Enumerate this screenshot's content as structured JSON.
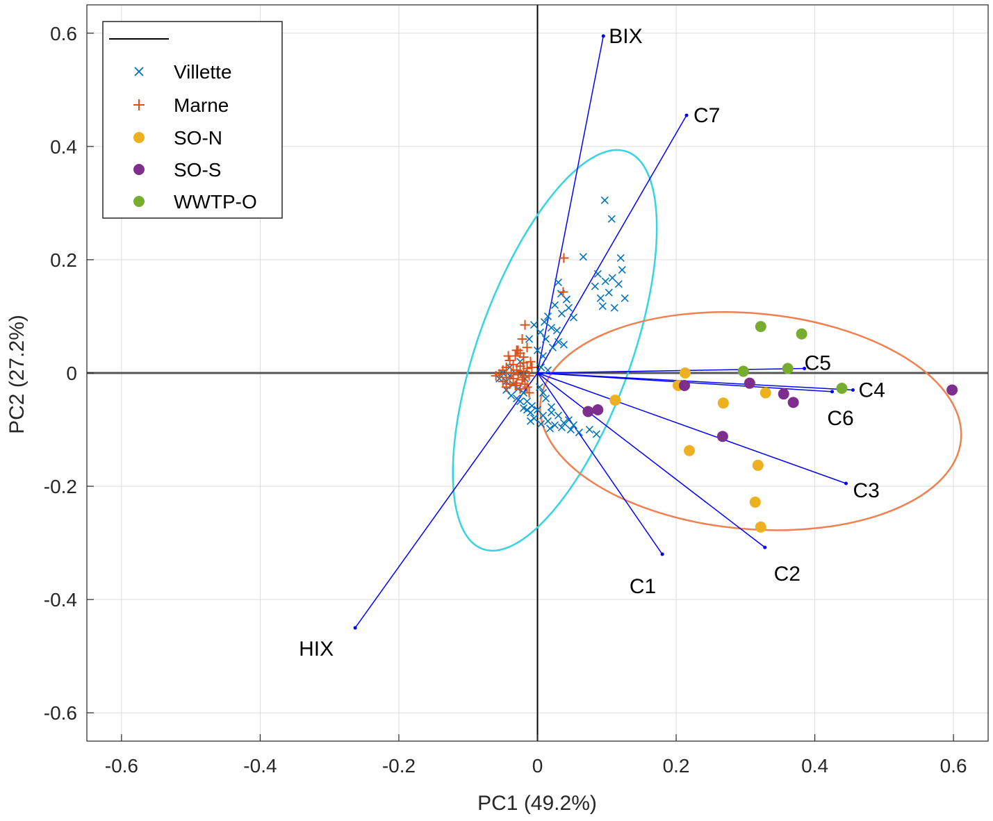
{
  "chart_data": {
    "type": "scatter",
    "title": "",
    "xlabel": "PC1 (49.2%)",
    "ylabel": "PC2 (27.2%)",
    "xlim": [
      -0.65,
      0.65
    ],
    "ylim": [
      -0.65,
      0.65
    ],
    "grid": true,
    "legend_position": "top-left",
    "xticks": [
      "-0.6",
      "-0.4",
      "-0.2",
      "0",
      "0.2",
      "0.4",
      "0.6"
    ],
    "yticks": [
      "0.6",
      "0.4",
      "0.2",
      "0",
      "-0.2",
      "-0.4",
      "-0.6"
    ],
    "xtick_values": [
      -0.6,
      -0.4,
      -0.2,
      0,
      0.2,
      0.4,
      0.6
    ],
    "ytick_values": [
      0.6,
      0.4,
      0.2,
      0,
      -0.2,
      -0.4,
      -0.6
    ],
    "colors": {
      "Villette": "#0072BD",
      "Marne": "#D95319",
      "SO-N": "#EDB120",
      "SO-S": "#7E2F8E",
      "WWTP-O": "#77AC30",
      "loadings": "#0000FF",
      "ellipse_villette": "#33D6E0",
      "ellipse_wwtp": "#F08050"
    },
    "legend": [
      {
        "name": "",
        "marker": "line"
      },
      {
        "name": "Villette",
        "marker": "x"
      },
      {
        "name": "Marne",
        "marker": "+"
      },
      {
        "name": "SO-N",
        "marker": "dot"
      },
      {
        "name": "SO-S",
        "marker": "dot"
      },
      {
        "name": "WWTP-O",
        "marker": "dot"
      }
    ],
    "loadings": [
      {
        "name": "BIX",
        "x": 0.095,
        "y": 0.595
      },
      {
        "name": "C7",
        "x": 0.215,
        "y": 0.455
      },
      {
        "name": "C5",
        "x": 0.385,
        "y": 0.008
      },
      {
        "name": "C4",
        "x": 0.455,
        "y": -0.03
      },
      {
        "name": "C6",
        "x": 0.425,
        "y": -0.033
      },
      {
        "name": "C3",
        "x": 0.445,
        "y": -0.195
      },
      {
        "name": "C2",
        "x": 0.328,
        "y": -0.308
      },
      {
        "name": "C1",
        "x": 0.18,
        "y": -0.32
      },
      {
        "name": "HIX",
        "x": -0.263,
        "y": -0.45
      }
    ],
    "ellipses": [
      {
        "group": "Villette",
        "cx": 0.025,
        "cy": 0.04,
        "a": 0.305,
        "b": 0.135,
        "angle_deg": 70
      },
      {
        "group": "WWTP-O",
        "cx": 0.3075,
        "cy": -0.085,
        "a": 0.3045,
        "b": 0.1905,
        "angle_deg": -5
      }
    ],
    "series": [
      {
        "name": "SO-N",
        "points": [
          [
            0.213,
            0.0
          ],
          [
            0.203,
            -0.022
          ],
          [
            0.112,
            -0.048
          ],
          [
            0.268,
            -0.053
          ],
          [
            0.329,
            -0.035
          ],
          [
            0.219,
            -0.137
          ],
          [
            0.318,
            -0.163
          ],
          [
            0.314,
            -0.228
          ],
          [
            0.322,
            -0.272
          ]
        ]
      },
      {
        "name": "SO-S",
        "points": [
          [
            0.212,
            -0.022
          ],
          [
            0.306,
            -0.018
          ],
          [
            0.355,
            -0.037
          ],
          [
            0.369,
            -0.052
          ],
          [
            0.073,
            -0.068
          ],
          [
            0.087,
            -0.065
          ],
          [
            0.267,
            -0.112
          ],
          [
            0.598,
            -0.03
          ]
        ]
      },
      {
        "name": "WWTP-O",
        "points": [
          [
            0.322,
            0.082
          ],
          [
            0.381,
            0.069
          ],
          [
            0.361,
            0.008
          ],
          [
            0.297,
            0.003
          ],
          [
            0.439,
            -0.027
          ]
        ]
      },
      {
        "name": "Villette",
        "points": [
          [
            0.097,
            0.305
          ],
          [
            0.107,
            0.272
          ],
          [
            0.066,
            0.205
          ],
          [
            0.12,
            0.203
          ],
          [
            0.122,
            0.182
          ],
          [
            0.087,
            0.175
          ],
          [
            0.108,
            0.168
          ],
          [
            0.098,
            0.162
          ],
          [
            0.117,
            0.157
          ],
          [
            0.083,
            0.153
          ],
          [
            0.103,
            0.142
          ],
          [
            0.091,
            0.132
          ],
          [
            0.126,
            0.132
          ],
          [
            0.111,
            0.115
          ],
          [
            0.094,
            0.118
          ],
          [
            0.03,
            0.16
          ],
          [
            0.034,
            0.14
          ],
          [
            0.042,
            0.13
          ],
          [
            0.025,
            0.12
          ],
          [
            0.045,
            0.115
          ],
          [
            0.035,
            0.105
          ],
          [
            0.052,
            0.098
          ],
          [
            0.015,
            0.1
          ],
          [
            0.01,
            0.09
          ],
          [
            0.02,
            0.08
          ],
          [
            0.028,
            0.075
          ],
          [
            0.004,
            0.072
          ],
          [
            0.012,
            0.06
          ],
          [
            0.03,
            0.055
          ],
          [
            0.022,
            0.045
          ],
          [
            0.038,
            0.05
          ],
          [
            -0.005,
            0.085
          ],
          [
            -0.012,
            0.06
          ],
          [
            0.0,
            0.04
          ],
          [
            0.008,
            0.03
          ],
          [
            -0.025,
            0.02
          ],
          [
            -0.04,
            0.01
          ],
          [
            -0.05,
            0.0
          ],
          [
            -0.055,
            -0.01
          ],
          [
            -0.045,
            -0.015
          ],
          [
            -0.035,
            -0.02
          ],
          [
            -0.028,
            -0.028
          ],
          [
            -0.02,
            -0.035
          ],
          [
            -0.03,
            -0.045
          ],
          [
            -0.038,
            -0.04
          ],
          [
            -0.015,
            -0.05
          ],
          [
            -0.008,
            -0.058
          ],
          [
            -0.02,
            -0.062
          ],
          [
            -0.01,
            -0.07
          ],
          [
            0.0,
            -0.065
          ],
          [
            -0.005,
            -0.08
          ],
          [
            0.005,
            -0.09
          ],
          [
            0.015,
            -0.085
          ],
          [
            0.025,
            -0.092
          ],
          [
            0.035,
            -0.096
          ],
          [
            0.048,
            -0.1
          ],
          [
            0.06,
            -0.105
          ],
          [
            0.075,
            -0.1
          ],
          [
            0.085,
            -0.108
          ],
          [
            0.045,
            -0.083
          ],
          [
            0.03,
            -0.075
          ],
          [
            0.02,
            -0.06
          ],
          [
            0.012,
            -0.045
          ],
          [
            0.003,
            -0.025
          ],
          [
            -0.018,
            -0.01
          ],
          [
            0.005,
            0.01
          ],
          [
            0.015,
            0.005
          ],
          [
            -0.01,
            -0.085
          ],
          [
            -0.015,
            -0.065
          ],
          [
            0.008,
            -0.075
          ],
          [
            0.018,
            -0.098
          ],
          [
            -0.025,
            -0.05
          ],
          [
            -0.045,
            -0.03
          ],
          [
            -0.032,
            0.0
          ],
          [
            -0.04,
            -0.005
          ],
          [
            -0.02,
            0.0
          ],
          [
            0.008,
            -0.035
          ],
          [
            0.02,
            -0.07
          ],
          [
            0.038,
            -0.088
          ],
          [
            0.052,
            -0.092
          ]
        ]
      },
      {
        "name": "Marne",
        "points": [
          [
            0.038,
            0.203
          ],
          [
            0.037,
            0.143
          ],
          [
            -0.018,
            0.085
          ],
          [
            -0.022,
            0.06
          ],
          [
            -0.028,
            0.04
          ],
          [
            -0.015,
            0.045
          ],
          [
            -0.032,
            0.03
          ],
          [
            -0.02,
            0.028
          ],
          [
            -0.04,
            0.022
          ],
          [
            -0.01,
            0.02
          ],
          [
            -0.035,
            0.015
          ],
          [
            -0.025,
            0.012
          ],
          [
            -0.045,
            0.01
          ],
          [
            -0.015,
            0.008
          ],
          [
            -0.05,
            0.005
          ],
          [
            -0.03,
            0.005
          ],
          [
            -0.02,
            0.003
          ],
          [
            -0.038,
            0.0
          ],
          [
            -0.055,
            -0.002
          ],
          [
            -0.028,
            -0.003
          ],
          [
            -0.012,
            -0.005
          ],
          [
            -0.045,
            -0.008
          ],
          [
            -0.035,
            -0.01
          ],
          [
            -0.022,
            -0.012
          ],
          [
            -0.05,
            -0.015
          ],
          [
            -0.03,
            -0.018
          ],
          [
            -0.04,
            -0.02
          ],
          [
            -0.018,
            -0.02
          ],
          [
            -0.025,
            -0.028
          ],
          [
            -0.012,
            -0.035
          ],
          [
            -0.02,
            0.018
          ],
          [
            -0.042,
            0.03
          ],
          [
            -0.008,
            0.01
          ],
          [
            -0.06,
            -0.005
          ],
          [
            -0.015,
            -0.025
          ],
          [
            -0.03,
            0.04
          ],
          [
            -0.025,
            0.035
          ],
          [
            -0.045,
            -0.025
          ],
          [
            -0.032,
            -0.022
          ],
          [
            -0.02,
            -0.008
          ]
        ]
      }
    ]
  }
}
